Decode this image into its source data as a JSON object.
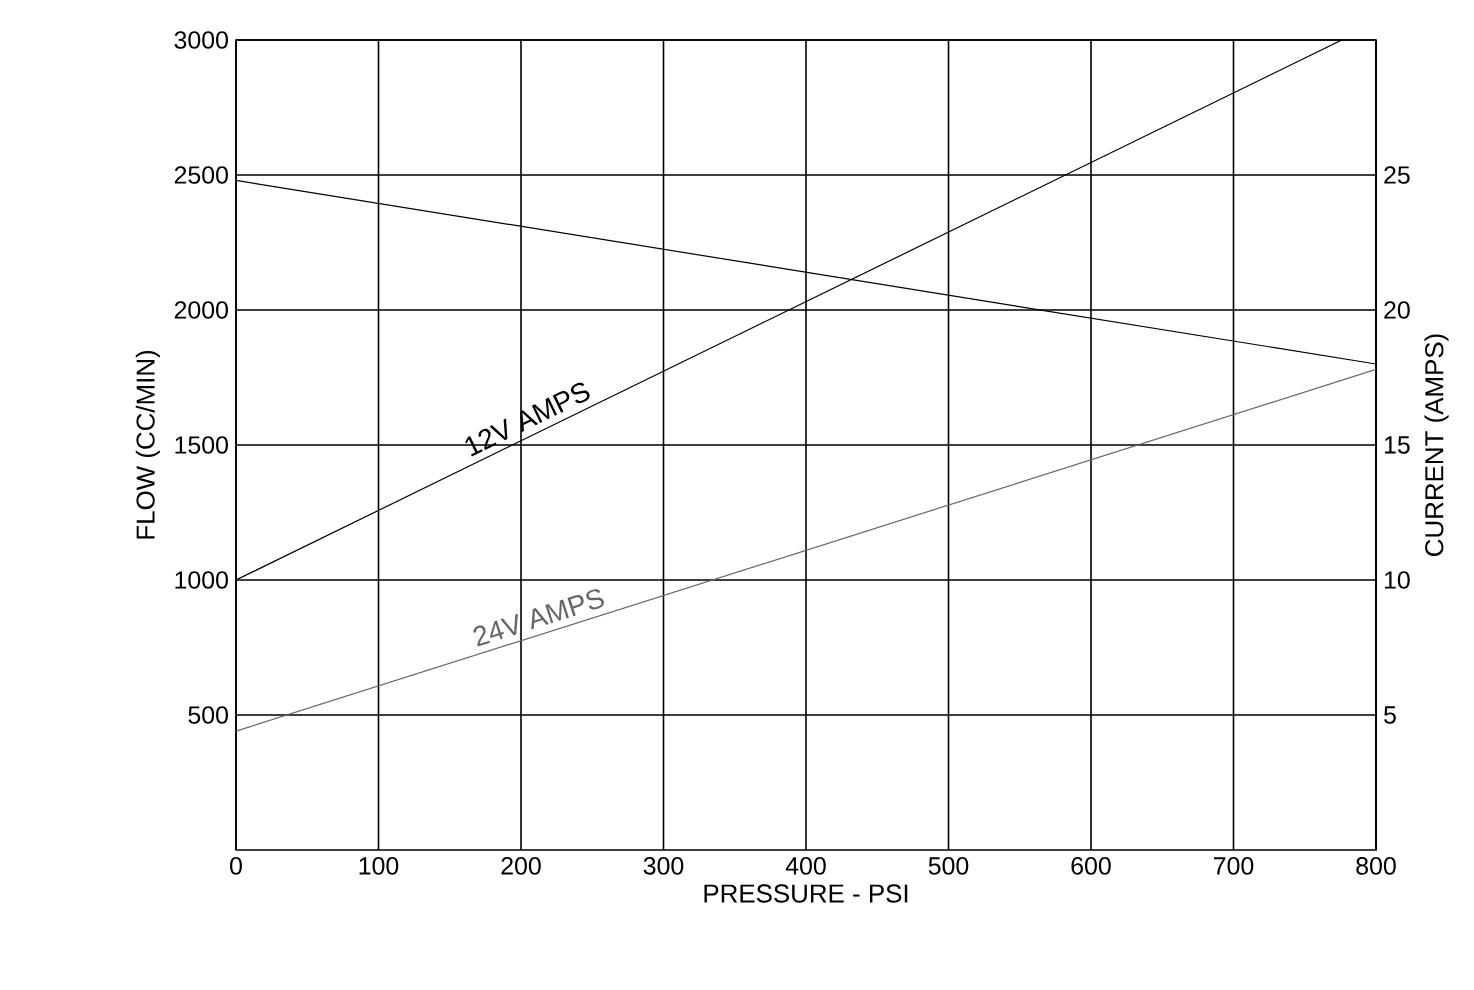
{
  "chart_data": {
    "type": "line",
    "xlabel": "PRESSURE - PSI",
    "ylabel": "FLOW (CC/MIN)",
    "y2label": "CURRENT (AMPS)",
    "xlim": [
      0,
      800
    ],
    "xticks": [
      0,
      100,
      200,
      300,
      400,
      500,
      600,
      700,
      800
    ],
    "ylim": [
      0,
      3000
    ],
    "yticks": [
      500,
      1000,
      1500,
      2000,
      2500,
      3000
    ],
    "y2lim": [
      0,
      30
    ],
    "y2ticks": [
      5,
      10,
      15,
      20,
      25
    ],
    "grid": true,
    "series": [
      {
        "color": "#000000",
        "x": [
          0,
          800
        ],
        "values": [
          2480,
          1800
        ]
      },
      {
        "name": "12V AMPS",
        "color": "#000000",
        "axis": "y2",
        "x": [
          0,
          776
        ],
        "values": [
          10,
          30
        ]
      },
      {
        "name": "24V AMPS",
        "color": "#666666",
        "axis": "y2",
        "x": [
          0,
          800
        ],
        "values": [
          4.4,
          17.8
        ]
      }
    ]
  }
}
